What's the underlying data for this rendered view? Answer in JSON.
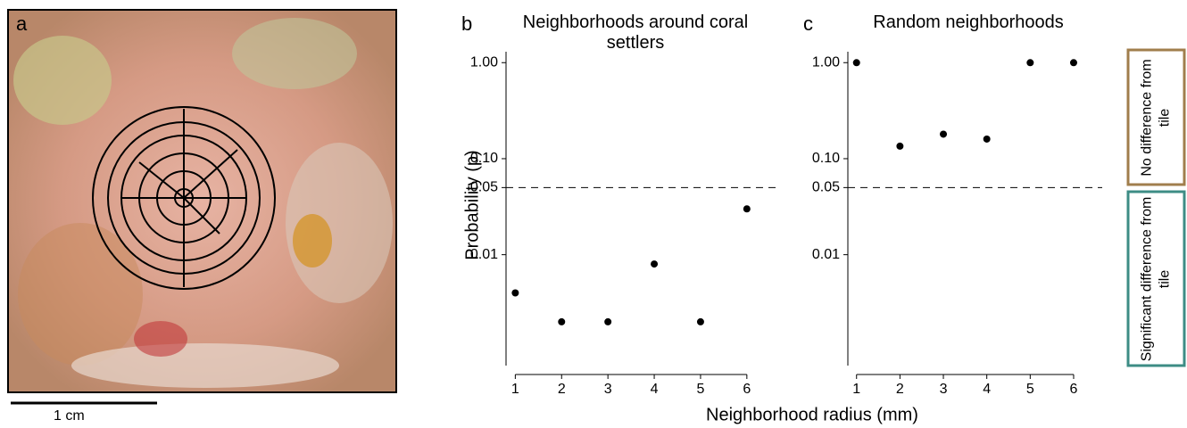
{
  "panel_a": {
    "label": "a",
    "scale_bar": "1 cm"
  },
  "chart_data": [
    {
      "type": "scatter",
      "panel": "b",
      "title": "Neighborhoods around coral settlers",
      "y_label": "Probability (p)",
      "x": [
        1,
        2,
        3,
        4,
        5,
        6
      ],
      "values": [
        0.004,
        0.002,
        0.002,
        0.008,
        0.002,
        0.03
      ],
      "color": "#000000",
      "xlim": [
        0.8,
        6.35
      ],
      "xticks": [
        1,
        2,
        3,
        4,
        5,
        6
      ],
      "ylim": [
        0.0007,
        1.3
      ],
      "log_y": true,
      "yticks": [
        0.01,
        0.05,
        {
          "value": 0.1,
          "label": "0.10"
        },
        {
          "value": 1,
          "label": "1.00"
        }
      ],
      "hline": 0.05
    },
    {
      "type": "scatter",
      "panel": "c",
      "title": "Random neighborhoods",
      "x": [
        1,
        2,
        3,
        4,
        5,
        6
      ],
      "values": [
        1,
        0.135,
        0.18,
        0.16,
        1,
        1
      ],
      "color": "#000000",
      "xlim": [
        0.8,
        6.35
      ],
      "xticks": [
        1,
        2,
        3,
        4,
        5,
        6
      ],
      "ylim": [
        0.0007,
        1.3
      ],
      "log_y": true,
      "yticks": [
        0.01,
        0.05,
        {
          "value": 0.1,
          "label": "0.10"
        },
        {
          "value": 1,
          "label": "1.00"
        }
      ],
      "hline": 0.05
    }
  ],
  "x_label": "Neighborhood radius (mm)",
  "side_labels": [
    {
      "text": "No difference from tile",
      "color": "#a07e4c"
    },
    {
      "text": "Significant difference from tile",
      "color": "#3d8c85"
    }
  ]
}
